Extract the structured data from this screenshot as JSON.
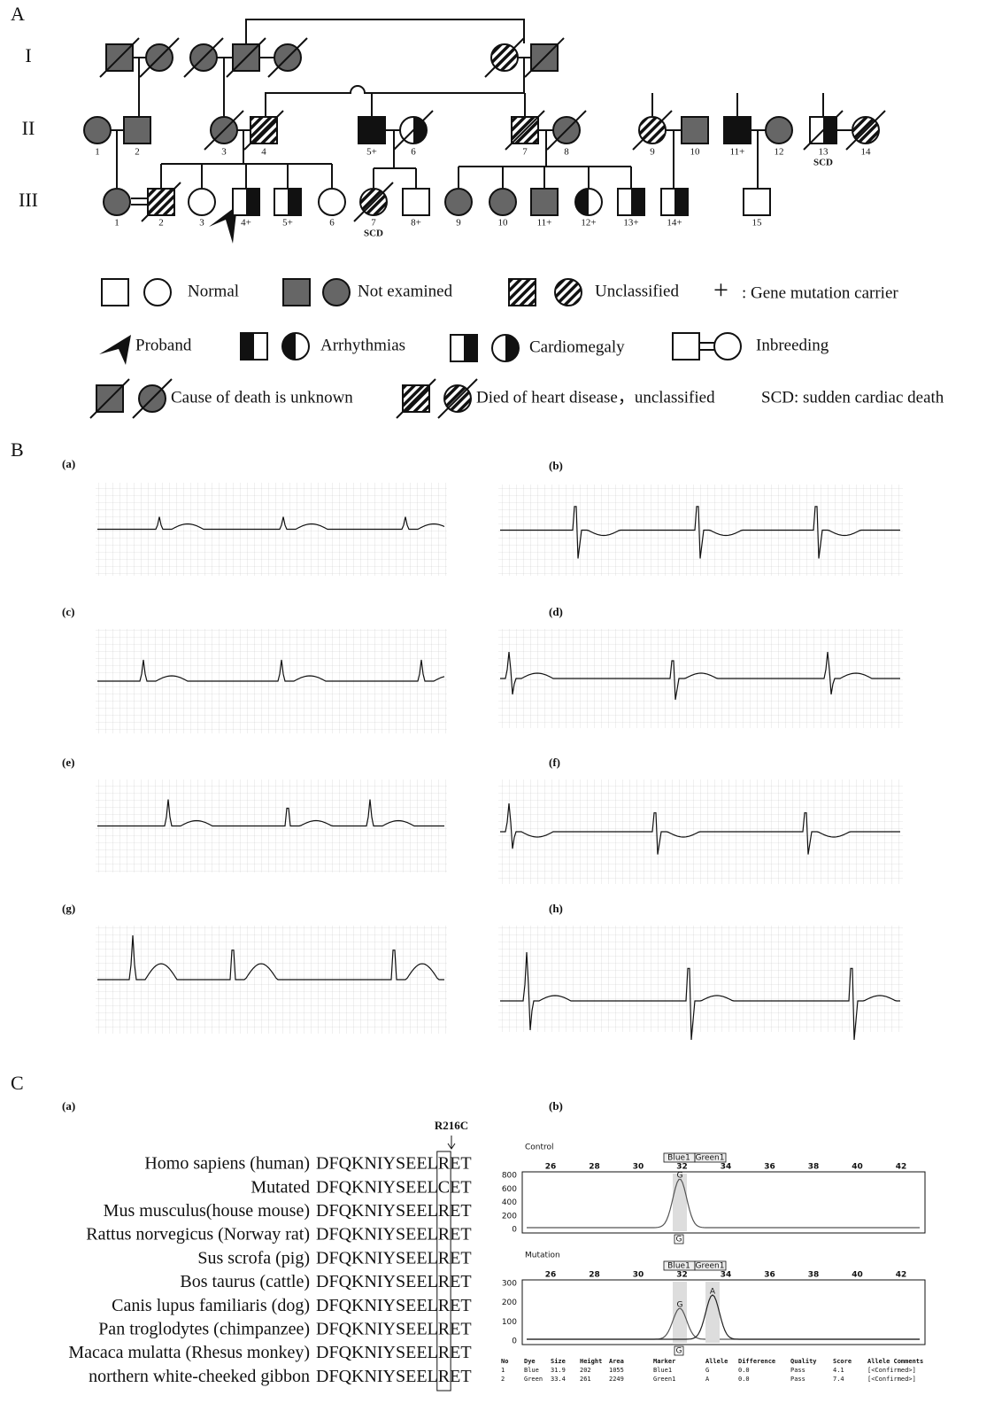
{
  "panel_a": {
    "label": "A",
    "generations": [
      "I",
      "II",
      "III"
    ],
    "gen2_ids": [
      "1",
      "2",
      "3",
      "4",
      "5+",
      "6",
      "7",
      "8",
      "9",
      "10",
      "11+",
      "12",
      "13",
      "14"
    ],
    "gen2_note": "SCD",
    "gen3_ids": [
      "1",
      "2",
      "3",
      "4+",
      "5+",
      "6",
      "7",
      "8+",
      "9",
      "10",
      "11+",
      "12+",
      "13+",
      "14+",
      "15"
    ],
    "gen3_note": "SCD",
    "legend": {
      "normal": "Normal",
      "not_examined": "Not examined",
      "unclassified": "Unclassified",
      "plus": "+",
      "carrier": ": Gene mutation carrier",
      "proband": "Proband",
      "arrhythmias": "Arrhythmias",
      "cardiomegaly": "Cardiomegaly",
      "inbreeding": "Inbreeding",
      "unknown_death": "Cause of death is unknown",
      "heart_death": "Died of heart disease，unclassified",
      "scd": "SCD: sudden cardiac  death"
    }
  },
  "panel_b": {
    "label": "B",
    "ecg_labels": [
      "(a)",
      "(b)",
      "(c)",
      "(d)",
      "(e)",
      "(f)",
      "(g)",
      "(h)"
    ]
  },
  "panel_c": {
    "label": "C",
    "alignment": {
      "label": "(a)",
      "mutation": "R216C",
      "rows": [
        [
          "Homo sapiens (human)",
          "DFQKNIYSEELRET"
        ],
        [
          "Mutated",
          "DFQKNIYSEELCET"
        ],
        [
          "Mus musculus(house mouse)",
          "DFQKNIYSEELRET"
        ],
        [
          "Rattus norvegicus (Norway rat)",
          "DFQKNIYSEELRET"
        ],
        [
          "Sus scrofa (pig)",
          "DFQKNIYSEELRET"
        ],
        [
          "Bos taurus (cattle)",
          "DFQKNIYSEELRET"
        ],
        [
          "Canis lupus familiaris (dog)",
          "DFQKNIYSEELRET"
        ],
        [
          "Pan troglodytes (chimpanzee)",
          "DFQKNIYSEELRET"
        ],
        [
          "Macaca mulatta (Rhesus monkey)",
          "DFQKNIYSEELRET"
        ],
        [
          "northern white-cheeked gibbon",
          "DFQKNIYSEELRET"
        ]
      ]
    },
    "chromatogram": {
      "label": "(b)",
      "x_ticks": [
        "26",
        "28",
        "30",
        "32",
        "34",
        "36",
        "38",
        "40",
        "42"
      ],
      "markers": [
        "Blue1",
        "Green1"
      ],
      "control": {
        "title": "Control",
        "y_ticks": [
          "800",
          "600",
          "400",
          "200",
          "0"
        ],
        "peaks": [
          "G"
        ],
        "call": "G"
      },
      "mutation": {
        "title": "Mutation",
        "y_ticks": [
          "300",
          "200",
          "100",
          "0"
        ],
        "peaks": [
          "G",
          "A"
        ],
        "call": "G"
      },
      "table": {
        "header": [
          "No",
          "Dye",
          "Size",
          "Height",
          "Area",
          "Marker",
          "Allele",
          "Difference",
          "Quality",
          "Score",
          "Allele Comments"
        ],
        "rows": [
          [
            "1",
            "Blue",
            "31.9",
            "202",
            "1055",
            "Blue1",
            "G",
            "0.0",
            "Pass",
            "4.1",
            "[<Confirmed>]"
          ],
          [
            "2",
            "Green",
            "33.4",
            "261",
            "2249",
            "Green1",
            "A",
            "0.0",
            "Pass",
            "7.4",
            "[<Confirmed>]"
          ]
        ]
      }
    }
  }
}
